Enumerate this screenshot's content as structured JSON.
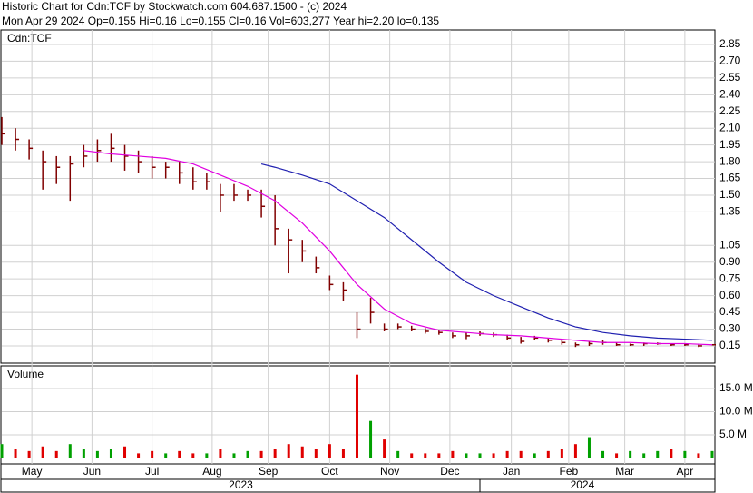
{
  "header": {
    "title": "Historic Chart for Cdn:TCF by Stockwatch.com 604.687.1500 - (c) 2024",
    "quote": "Mon Apr 29 2024  Op=0.155  Hi=0.16  Lo=0.155  Cl=0.16  Vol=603,277  Year hi=2.20  lo=0.135"
  },
  "chart_data": [
    {
      "type": "ohlc",
      "label": "Cdn:TCF",
      "color": "#800000",
      "xlim": [
        0,
        52.2
      ],
      "ylim": [
        0,
        2.98
      ],
      "yticks": [
        0.15,
        {
          "value": 0.3,
          "label": "0.30"
        },
        0.45,
        {
          "value": 0.6,
          "label": "0.60"
        },
        0.75,
        {
          "value": 0.9,
          "label": "0.90"
        },
        1.05,
        1.35,
        {
          "value": 1.5,
          "label": "1.50"
        },
        1.65,
        {
          "value": 1.8,
          "label": "1.80"
        },
        1.95,
        {
          "value": 2.1,
          "label": "2.10"
        },
        2.25,
        {
          "value": 2.4,
          "label": "2.40"
        },
        2.55,
        {
          "value": 2.7,
          "label": "2.70"
        },
        2.85
      ],
      "xticks": [
        {
          "value": 2.2,
          "label": "May"
        },
        {
          "value": 6.6,
          "label": "Jun"
        },
        {
          "value": 11,
          "label": "Jul"
        },
        {
          "value": 15.4,
          "label": "Aug"
        },
        {
          "value": 19.5,
          "label": "Sep"
        },
        {
          "value": 24,
          "label": "Oct"
        },
        {
          "value": 28.4,
          "label": "Nov"
        },
        {
          "value": 32.8,
          "label": "Dec"
        },
        {
          "value": 37.3,
          "label": "Jan"
        },
        {
          "value": 41.5,
          "label": "Feb"
        },
        {
          "value": 45.6,
          "label": "Mar"
        },
        {
          "value": 50,
          "label": "Apr"
        }
      ],
      "years": [
        {
          "value": 17.5,
          "label": "2023"
        },
        {
          "value": 42.5,
          "label": "2024"
        }
      ],
      "year_split": 35,
      "x": [
        0,
        1,
        2,
        3,
        4,
        5,
        6,
        7,
        8,
        9,
        10,
        11,
        12,
        13,
        14,
        15,
        16,
        17,
        18,
        19,
        20,
        21,
        22,
        23,
        24,
        25,
        26,
        27,
        28,
        29,
        30,
        31,
        32,
        33,
        34,
        35,
        36,
        37,
        38,
        39,
        40,
        41,
        42,
        43,
        44,
        45,
        46,
        47,
        48,
        49,
        50,
        51,
        52
      ],
      "high": [
        2.2,
        2.1,
        2.0,
        1.9,
        1.85,
        1.85,
        1.95,
        2.0,
        2.05,
        1.95,
        1.9,
        1.85,
        1.8,
        1.8,
        1.75,
        1.7,
        1.6,
        1.6,
        1.55,
        1.55,
        1.5,
        1.2,
        1.1,
        0.95,
        0.78,
        0.72,
        0.45,
        0.58,
        0.35,
        0.35,
        0.33,
        0.31,
        0.29,
        0.27,
        0.27,
        0.28,
        0.27,
        0.25,
        0.23,
        0.24,
        0.22,
        0.2,
        0.18,
        0.19,
        0.2,
        0.18,
        0.17,
        0.18,
        0.18,
        0.17,
        0.17,
        0.16,
        0.16
      ],
      "low": [
        1.95,
        1.9,
        1.82,
        1.55,
        1.6,
        1.45,
        1.75,
        1.8,
        1.8,
        1.72,
        1.7,
        1.65,
        1.65,
        1.6,
        1.55,
        1.55,
        1.35,
        1.45,
        1.45,
        1.3,
        1.05,
        0.8,
        0.9,
        0.8,
        0.65,
        0.55,
        0.22,
        0.35,
        0.28,
        0.3,
        0.28,
        0.26,
        0.25,
        0.22,
        0.21,
        0.24,
        0.23,
        0.2,
        0.17,
        0.2,
        0.18,
        0.16,
        0.14,
        0.15,
        0.16,
        0.15,
        0.15,
        0.15,
        0.16,
        0.15,
        0.15,
        0.14,
        0.155
      ],
      "close": [
        2.05,
        2.0,
        1.92,
        1.8,
        1.75,
        1.78,
        1.85,
        1.9,
        1.92,
        1.85,
        1.8,
        1.75,
        1.75,
        1.7,
        1.62,
        1.62,
        1.5,
        1.5,
        1.5,
        1.4,
        1.2,
        1.1,
        1.0,
        0.85,
        0.7,
        0.65,
        0.3,
        0.45,
        0.3,
        0.32,
        0.3,
        0.28,
        0.27,
        0.24,
        0.24,
        0.26,
        0.25,
        0.22,
        0.19,
        0.22,
        0.2,
        0.18,
        0.16,
        0.17,
        0.18,
        0.16,
        0.16,
        0.17,
        0.17,
        0.16,
        0.16,
        0.15,
        0.16
      ],
      "series": [
        {
          "color": "#e000e0",
          "x": [
            6,
            8,
            10,
            12,
            14,
            16,
            18,
            20,
            22,
            24,
            26,
            28,
            30,
            32,
            34,
            36,
            38,
            40,
            42,
            44,
            46,
            48,
            50,
            52
          ],
          "values": [
            1.9,
            1.87,
            1.85,
            1.83,
            1.78,
            1.68,
            1.58,
            1.45,
            1.25,
            1.0,
            0.7,
            0.48,
            0.35,
            0.29,
            0.27,
            0.25,
            0.24,
            0.22,
            0.2,
            0.18,
            0.18,
            0.17,
            0.17,
            0.16
          ]
        },
        {
          "color": "#2020b0",
          "x": [
            19,
            20,
            22,
            24,
            26,
            28,
            30,
            32,
            34,
            36,
            38,
            40,
            42,
            44,
            46,
            48,
            50,
            52
          ],
          "values": [
            1.78,
            1.75,
            1.68,
            1.6,
            1.45,
            1.3,
            1.1,
            0.9,
            0.72,
            0.6,
            0.5,
            0.4,
            0.32,
            0.27,
            0.24,
            0.22,
            0.21,
            0.2
          ]
        }
      ]
    },
    {
      "type": "volume",
      "label": "Volume",
      "up_color": "#00a000",
      "down_color": "#e00000",
      "xlim": [
        0,
        52.2
      ],
      "ylim": [
        0,
        19900000
      ],
      "yticks": [
        {
          "value": 5000000,
          "label": "5.0 M"
        },
        {
          "value": 10000000,
          "label": "10.0 M"
        },
        {
          "value": 15000000,
          "label": "15.0 M"
        }
      ],
      "values": [
        3000000,
        2000000,
        1500000,
        2500000,
        1500000,
        3000000,
        2000000,
        1500000,
        2000000,
        2500000,
        1000000,
        1500000,
        1000000,
        1500000,
        1000000,
        1000000,
        2000000,
        1000000,
        1500000,
        1500000,
        2000000,
        3000000,
        2500000,
        2000000,
        3000000,
        2000000,
        18000000,
        8000000,
        4000000,
        1500000,
        1000000,
        1000000,
        1000000,
        1500000,
        1000000,
        1000000,
        1000000,
        1500000,
        1500000,
        1000000,
        1500000,
        2000000,
        3000000,
        4500000,
        1500000,
        1000000,
        1500000,
        1000000,
        1500000,
        2000000,
        1500000,
        1000000,
        1500000
      ]
    }
  ]
}
